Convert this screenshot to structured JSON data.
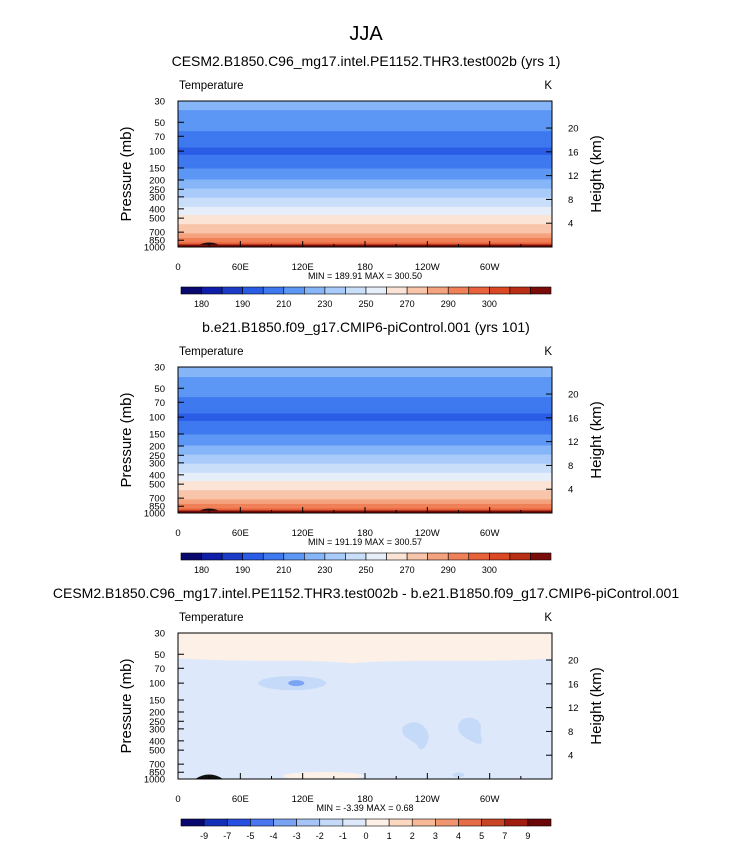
{
  "page_title": "JJA",
  "palette": {
    "abs": [
      "#08086e",
      "#0f1ea8",
      "#1c3cc8",
      "#2a5ce6",
      "#3e79f0",
      "#5c97f5",
      "#86b5f8",
      "#a9cbfa",
      "#c9def9",
      "#e6eefa",
      "#fbe4d6",
      "#f8c5ab",
      "#f4a37f",
      "#f08058",
      "#e8623b",
      "#db4824",
      "#b92f16",
      "#7a0d0a"
    ],
    "diff": [
      "#08086e",
      "#1530b8",
      "#2850e0",
      "#4a77f0",
      "#7aa3f4",
      "#a7c4f6",
      "#c5d9f8",
      "#dde9fa",
      "#fdf0e6",
      "#fbd8c2",
      "#f7b897",
      "#f19470",
      "#e56c47",
      "#c94425",
      "#a01d0f",
      "#6b0707"
    ]
  },
  "chart_data": [
    {
      "type": "heatmap",
      "name": "panel-test",
      "title": "CESM2.B1850.C96_mg17.intel.PE1152.THR3.test002b (yrs 1)",
      "left_label": "Temperature",
      "units": "K",
      "xlabel": "",
      "ylabel": "Pressure (mb)",
      "right_label": "Height (km)",
      "xticks": [
        "0",
        "60E",
        "120E",
        "180",
        "120W",
        "60W"
      ],
      "yticks": [
        "30",
        "50",
        "70",
        "100",
        "150",
        "200",
        "250",
        "300",
        "400",
        "500",
        "700",
        "850",
        "1000"
      ],
      "right_ticks": [
        "20",
        "16",
        "12",
        "8",
        "4"
      ],
      "minmax": "MIN = 189.91  MAX = 300.50",
      "colorbar_labels": [
        "180",
        "190",
        "210",
        "230",
        "250",
        "270",
        "290",
        "300"
      ],
      "profile": {
        "pressure_mb": [
          30,
          50,
          70,
          85,
          100,
          120,
          150,
          200,
          250,
          300,
          400,
          500,
          700,
          850,
          1000
        ],
        "temperature_K": [
          223,
          216,
          207,
          201,
          199,
          201,
          209,
          220,
          230,
          239,
          252,
          263,
          278,
          287,
          295
        ]
      },
      "features": [
        {
          "lon": 30,
          "p": 990,
          "label": "topography"
        }
      ],
      "zrange": [
        189.91,
        300.5
      ]
    },
    {
      "type": "heatmap",
      "name": "panel-control",
      "title": "b.e21.B1850.f09_g17.CMIP6-piControl.001 (yrs 101)",
      "left_label": "Temperature",
      "units": "K",
      "xlabel": "",
      "ylabel": "Pressure (mb)",
      "right_label": "Height (km)",
      "xticks": [
        "0",
        "60E",
        "120E",
        "180",
        "120W",
        "60W"
      ],
      "yticks": [
        "30",
        "50",
        "70",
        "100",
        "150",
        "200",
        "250",
        "300",
        "400",
        "500",
        "700",
        "850",
        "1000"
      ],
      "right_ticks": [
        "20",
        "16",
        "12",
        "8",
        "4"
      ],
      "minmax": "MIN = 191.19  MAX = 300.57",
      "colorbar_labels": [
        "180",
        "190",
        "210",
        "230",
        "250",
        "270",
        "290",
        "300"
      ],
      "profile": {
        "pressure_mb": [
          30,
          50,
          70,
          85,
          100,
          120,
          150,
          200,
          250,
          300,
          400,
          500,
          700,
          850,
          1000
        ],
        "temperature_K": [
          224,
          216,
          207,
          201,
          199,
          201,
          209,
          220,
          230,
          239,
          252,
          263,
          278,
          287,
          295
        ]
      },
      "features": [
        {
          "lon": 30,
          "p": 990,
          "label": "topography"
        }
      ],
      "zrange": [
        191.19,
        300.57
      ]
    },
    {
      "type": "heatmap",
      "name": "panel-diff",
      "title": "CESM2.B1850.C96_mg17.intel.PE1152.THR3.test002b - b.e21.B1850.f09_g17.CMIP6-piControl.001",
      "left_label": "Temperature",
      "units": "K",
      "xlabel": "",
      "ylabel": "Pressure (mb)",
      "right_label": "Height (km)",
      "xticks": [
        "0",
        "60E",
        "120E",
        "180",
        "120W",
        "60W"
      ],
      "yticks": [
        "30",
        "50",
        "70",
        "100",
        "150",
        "200",
        "250",
        "300",
        "400",
        "500",
        "700",
        "850",
        "1000"
      ],
      "right_ticks": [
        "20",
        "16",
        "12",
        "8",
        "4"
      ],
      "minmax": "MIN = -3.39  MAX =  0.68",
      "colorbar_labels": [
        "-9",
        "-7",
        "-5",
        "-4",
        "-3",
        "-2",
        "-1",
        "0",
        "1",
        "2",
        "3",
        "4",
        "5",
        "7",
        "9"
      ],
      "diff_regions": {
        "upper_positive_K": 0.3,
        "background_K": -0.5,
        "mid_band_K": -1.0,
        "blob_K": -2.0,
        "core_K": -3.39
      },
      "features": [
        {
          "lon": 110,
          "p": 100,
          "label": "cold core"
        },
        {
          "lon": 230,
          "p": 330,
          "label": "cold patch"
        },
        {
          "lon": 280,
          "p": 290,
          "label": "cold patch"
        }
      ],
      "zrange": [
        -3.39,
        0.68
      ]
    }
  ]
}
